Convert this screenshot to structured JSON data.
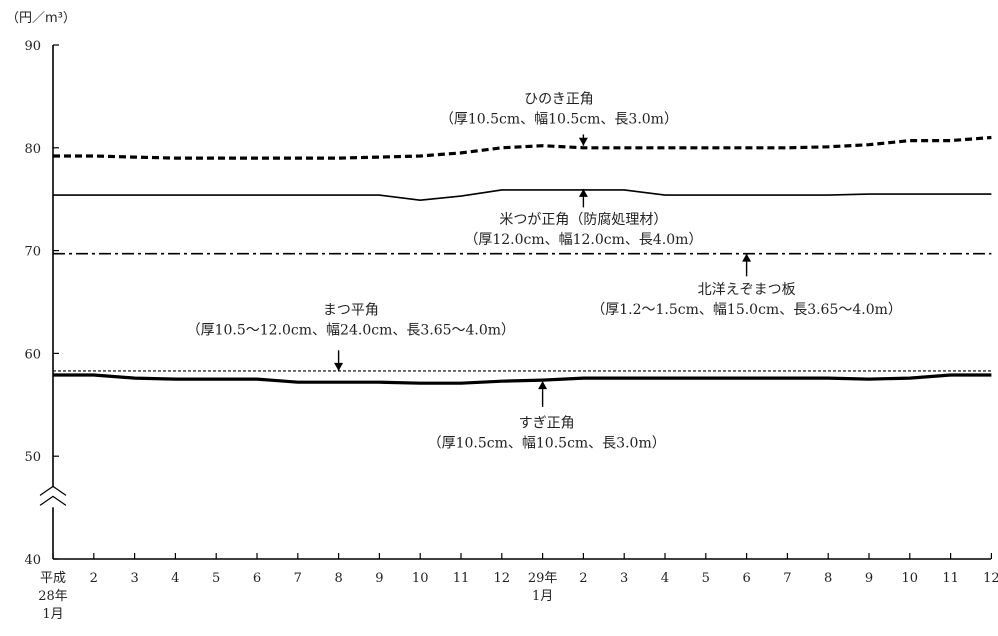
{
  "chart_data": {
    "type": "line",
    "unit_label": "（円／m³）",
    "ylim": [
      40,
      90
    ],
    "y_ticks": [
      "40",
      "50",
      "60",
      "70",
      "80",
      "90"
    ],
    "axis_break_value": 46,
    "x_tick_labels": [
      [
        "平成",
        "28年",
        "1月"
      ],
      [
        "2"
      ],
      [
        "3"
      ],
      [
        "4"
      ],
      [
        "5"
      ],
      [
        "6"
      ],
      [
        "7"
      ],
      [
        "8"
      ],
      [
        "9"
      ],
      [
        "10"
      ],
      [
        "11"
      ],
      [
        "12"
      ],
      [
        "29年",
        "1月"
      ],
      [
        "2"
      ],
      [
        "3"
      ],
      [
        "4"
      ],
      [
        "5"
      ],
      [
        "6"
      ],
      [
        "7"
      ],
      [
        "8"
      ],
      [
        "9"
      ],
      [
        "10"
      ],
      [
        "11"
      ],
      [
        "12"
      ]
    ],
    "series": [
      {
        "style": "dashed-thick",
        "color": "#000000",
        "values": [
          79.2,
          79.2,
          79.1,
          79.0,
          79.0,
          79.0,
          79.0,
          79.0,
          79.1,
          79.2,
          79.5,
          80.0,
          80.2,
          80.0,
          80.0,
          80.0,
          80.0,
          80.0,
          80.0,
          80.1,
          80.3,
          80.7,
          80.7,
          81.0
        ]
      },
      {
        "style": "solid-thin",
        "color": "#000000",
        "values": [
          75.4,
          75.4,
          75.4,
          75.4,
          75.4,
          75.4,
          75.4,
          75.4,
          75.4,
          74.9,
          75.3,
          75.9,
          75.9,
          75.9,
          75.9,
          75.4,
          75.4,
          75.4,
          75.4,
          75.4,
          75.5,
          75.5,
          75.5,
          75.5
        ]
      },
      {
        "style": "dash-dot",
        "color": "#000000",
        "values": [
          69.7,
          69.7,
          69.7,
          69.7,
          69.7,
          69.7,
          69.7,
          69.7,
          69.7,
          69.7,
          69.7,
          69.7,
          69.7,
          69.7,
          69.7,
          69.7,
          69.7,
          69.7,
          69.7,
          69.7,
          69.7,
          69.7,
          69.7,
          69.7
        ]
      },
      {
        "style": "dotted-thin",
        "color": "#000000",
        "values": [
          58.3,
          58.3,
          58.3,
          58.3,
          58.3,
          58.3,
          58.3,
          58.3,
          58.3,
          58.3,
          58.3,
          58.3,
          58.3,
          58.3,
          58.3,
          58.3,
          58.3,
          58.3,
          58.3,
          58.3,
          58.3,
          58.3,
          58.3,
          58.3
        ]
      },
      {
        "style": "solid-thick",
        "color": "#000000",
        "values": [
          57.9,
          57.9,
          57.6,
          57.5,
          57.5,
          57.5,
          57.2,
          57.2,
          57.2,
          57.1,
          57.1,
          57.3,
          57.4,
          57.6,
          57.6,
          57.6,
          57.6,
          57.6,
          57.6,
          57.6,
          57.5,
          57.6,
          57.9,
          57.9
        ]
      }
    ],
    "annotations": [
      {
        "lines": [
          "ひのき正角",
          "（厚10.5cm、幅10.5cm、長3.0m）"
        ],
        "arrow_index": 13,
        "arrow_from": 81.3,
        "arrow_to": 80.2,
        "label_y": 84.3,
        "label_x_index": 12.4
      },
      {
        "lines": [
          "米つが正角（防腐処理材）",
          "（厚12.0cm、幅12.0cm、長4.0m）"
        ],
        "arrow_index": 13,
        "arrow_from": 74.2,
        "arrow_to": 76.0,
        "label_y": 72.6,
        "label_x_index": 13.0
      },
      {
        "lines": [
          "北洋えぞまつ板",
          "（厚1.2～1.5cm、幅15.0cm、長3.65～4.0m）"
        ],
        "arrow_index": 17,
        "arrow_from": 67.5,
        "arrow_to": 69.7,
        "label_y": 65.8,
        "label_x_index": 17.0
      },
      {
        "lines": [
          "まつ平角",
          "（厚10.5～12.0cm、幅24.0cm、長3.65～4.0m）"
        ],
        "arrow_index": 7,
        "arrow_from": 60.3,
        "arrow_to": 58.3,
        "label_y": 63.8,
        "label_x_index": 7.3
      },
      {
        "lines": [
          "すぎ正角",
          "（厚10.5cm、幅10.5cm、長3.0m）"
        ],
        "arrow_index": 12,
        "arrow_from": 54.8,
        "arrow_to": 57.3,
        "label_y": 52.8,
        "label_x_index": 12.1
      }
    ]
  }
}
